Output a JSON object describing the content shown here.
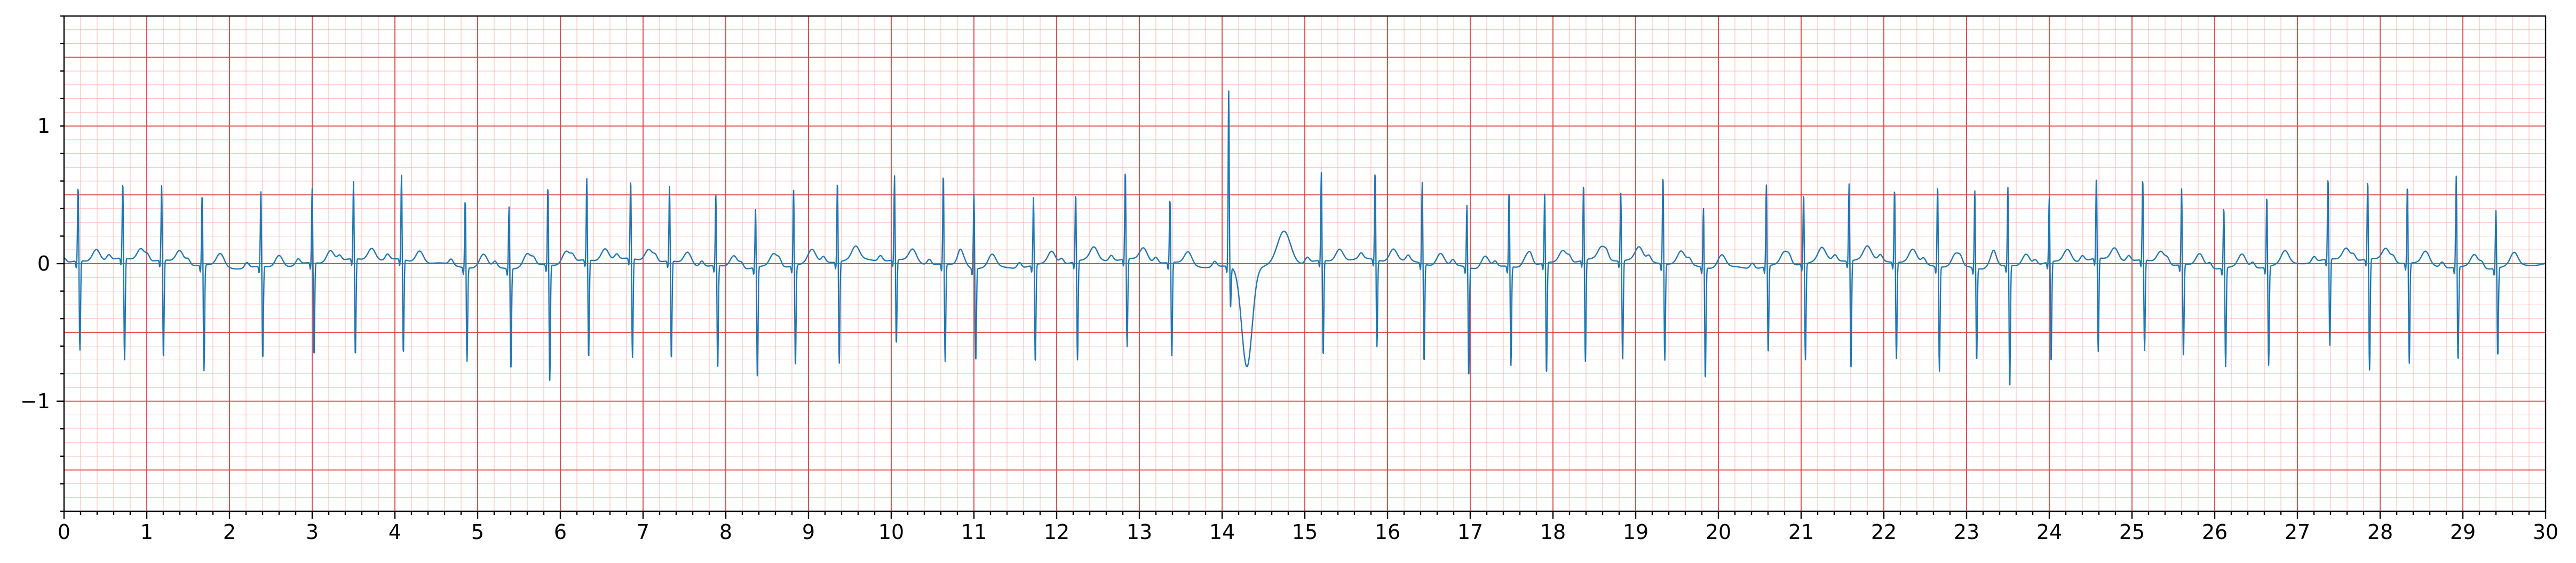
{
  "chart_data": {
    "type": "line",
    "title": "",
    "xlabel": "",
    "ylabel": "",
    "xlim": [
      0,
      30
    ],
    "ylim": [
      -1.8,
      1.8
    ],
    "x_major_ticks": [
      0,
      1,
      2,
      3,
      4,
      5,
      6,
      7,
      8,
      9,
      10,
      11,
      12,
      13,
      14,
      15,
      16,
      17,
      18,
      19,
      20,
      21,
      22,
      23,
      24,
      25,
      26,
      27,
      28,
      29,
      30
    ],
    "x_tick_labels": [
      "0",
      "1",
      "2",
      "3",
      "4",
      "5",
      "6",
      "7",
      "8",
      "9",
      "10",
      "11",
      "12",
      "13",
      "14",
      "15",
      "16",
      "17",
      "18",
      "19",
      "20",
      "21",
      "22",
      "23",
      "24",
      "25",
      "26",
      "27",
      "28",
      "29",
      "30"
    ],
    "y_major_ticks": [
      -1,
      0,
      1
    ],
    "y_tick_labels": [
      "−1",
      "0",
      "1"
    ],
    "grid": true,
    "grid_style": "ecg paper: major lines every 1 s and 0.5, minor lines every 0.2 s and 0.1",
    "colors": {
      "trace": "#1f77b4",
      "grid_major": "#e03a3a",
      "grid_minor": "#ff9a9a"
    },
    "series": [
      {
        "beats": [
          {
            "t": 0.17,
            "r": 0.55,
            "s": -0.65
          },
          {
            "t": 0.71,
            "r": 0.56,
            "s": -0.74
          },
          {
            "t": 1.18,
            "r": 0.55,
            "s": -0.72
          },
          {
            "t": 1.67,
            "r": 0.52,
            "s": -0.77
          },
          {
            "t": 2.38,
            "r": 0.55,
            "s": -0.68
          },
          {
            "t": 3.0,
            "r": 0.55,
            "s": -0.68
          },
          {
            "t": 3.5,
            "r": 0.57,
            "s": -0.71
          },
          {
            "t": 4.08,
            "r": 0.62,
            "s": -0.69
          },
          {
            "t": 4.85,
            "r": 0.5,
            "s": -0.68
          },
          {
            "t": 5.38,
            "r": 0.46,
            "s": -0.74
          },
          {
            "t": 5.85,
            "r": 0.58,
            "s": -0.84
          },
          {
            "t": 6.32,
            "r": 0.6,
            "s": -0.72
          },
          {
            "t": 6.85,
            "r": 0.58,
            "s": -0.72
          },
          {
            "t": 7.32,
            "r": 0.55,
            "s": -0.72
          },
          {
            "t": 7.88,
            "r": 0.52,
            "s": -0.76
          },
          {
            "t": 8.36,
            "r": 0.43,
            "s": -0.82
          },
          {
            "t": 8.82,
            "r": 0.56,
            "s": -0.74
          },
          {
            "t": 9.35,
            "r": 0.59,
            "s": -0.74
          },
          {
            "t": 10.04,
            "r": 0.62,
            "s": -0.62
          },
          {
            "t": 10.63,
            "r": 0.66,
            "s": -0.71
          },
          {
            "t": 11.0,
            "r": 0.55,
            "s": -0.68
          },
          {
            "t": 11.72,
            "r": 0.5,
            "s": -0.72
          },
          {
            "t": 12.23,
            "r": 0.5,
            "s": -0.72
          },
          {
            "t": 12.83,
            "r": 0.65,
            "s": -0.64
          },
          {
            "t": 13.37,
            "r": 0.47,
            "s": -0.68
          },
          {
            "t": 14.08,
            "r": 1.28,
            "s": -0.3
          },
          {
            "t": 15.2,
            "r": 0.65,
            "s": -0.7
          },
          {
            "t": 15.85,
            "r": 0.65,
            "s": -0.63
          },
          {
            "t": 16.42,
            "r": 0.6,
            "s": -0.72
          },
          {
            "t": 16.96,
            "r": 0.46,
            "s": -0.8
          },
          {
            "t": 17.47,
            "r": 0.55,
            "s": -0.72
          },
          {
            "t": 17.9,
            "r": 0.51,
            "s": -0.82
          },
          {
            "t": 18.37,
            "r": 0.56,
            "s": -0.74
          },
          {
            "t": 18.82,
            "r": 0.5,
            "s": -0.74
          },
          {
            "t": 19.33,
            "r": 0.65,
            "s": -0.7
          },
          {
            "t": 19.82,
            "r": 0.44,
            "s": -0.82
          },
          {
            "t": 20.58,
            "r": 0.6,
            "s": -0.64
          },
          {
            "t": 21.03,
            "r": 0.52,
            "s": -0.7
          },
          {
            "t": 21.58,
            "r": 0.57,
            "s": -0.8
          },
          {
            "t": 22.13,
            "r": 0.54,
            "s": -0.7
          },
          {
            "t": 22.65,
            "r": 0.6,
            "s": -0.76
          },
          {
            "t": 23.1,
            "r": 0.57,
            "s": -0.68
          },
          {
            "t": 23.5,
            "r": 0.58,
            "s": -0.9
          },
          {
            "t": 24.0,
            "r": 0.47,
            "s": -0.74
          },
          {
            "t": 24.57,
            "r": 0.6,
            "s": -0.68
          },
          {
            "t": 25.13,
            "r": 0.6,
            "s": -0.66
          },
          {
            "t": 25.6,
            "r": 0.56,
            "s": -0.68
          },
          {
            "t": 26.11,
            "r": 0.45,
            "s": -0.72
          },
          {
            "t": 26.63,
            "r": 0.52,
            "s": -0.72
          },
          {
            "t": 27.37,
            "r": 0.6,
            "s": -0.63
          },
          {
            "t": 27.85,
            "r": 0.58,
            "s": -0.81
          },
          {
            "t": 28.33,
            "r": 0.57,
            "s": -0.73
          },
          {
            "t": 28.92,
            "r": 0.67,
            "s": -0.69
          },
          {
            "t": 29.4,
            "r": 0.43,
            "s": -0.65
          }
        ],
        "ectopic_beats": [
          {
            "t": 14.3,
            "peak": -0.8,
            "t_wave": 0.25
          }
        ]
      }
    ]
  }
}
